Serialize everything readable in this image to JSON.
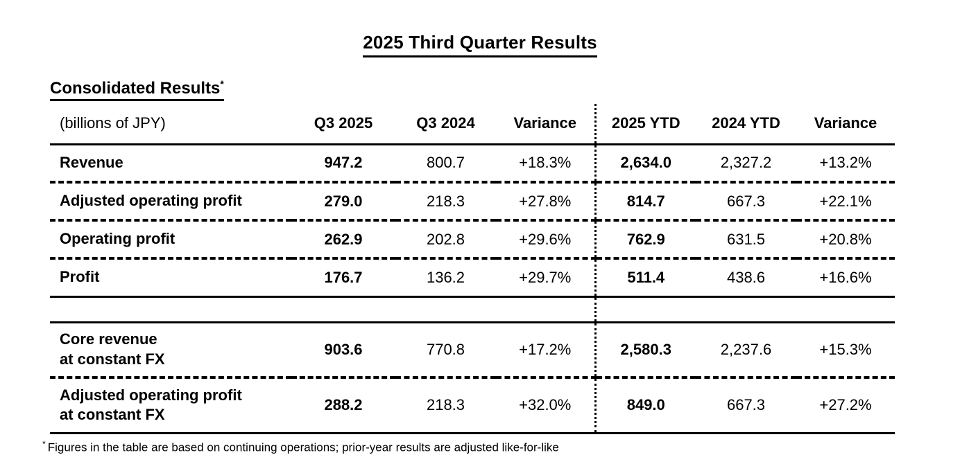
{
  "document": {
    "title": "2025 Third Quarter Results",
    "section_heading": "Consolidated Results",
    "section_note_marker": "*",
    "footnote_marker": "*",
    "footnote": "Figures in the table are based on continuing operations; prior-year results are adjusted like-for-like"
  },
  "colors": {
    "text": "#000000",
    "background": "#ffffff"
  },
  "table": {
    "unit_header": "(billions of JPY)",
    "headers": [
      "Q3 2025",
      "Q3 2024",
      "Variance",
      "2025 YTD",
      "2024 YTD",
      "Variance"
    ],
    "rows": [
      {
        "label": "Revenue",
        "values": [
          "947.2",
          "800.7",
          "+18.3%",
          "2,634.0",
          "2,327.2",
          "+13.2%"
        ]
      },
      {
        "label": "Adjusted operating profit",
        "values": [
          "279.0",
          "218.3",
          "+27.8%",
          "814.7",
          "667.3",
          "+22.1%"
        ]
      },
      {
        "label": "Operating profit",
        "values": [
          "262.9",
          "202.8",
          "+29.6%",
          "762.9",
          "631.5",
          "+20.8%"
        ]
      },
      {
        "label": "Profit",
        "values": [
          "176.7",
          "136.2",
          "+29.7%",
          "511.4",
          "438.6",
          "+16.6%"
        ]
      },
      {
        "label_line1": "Core revenue",
        "label_line2": "at constant FX",
        "values": [
          "903.6",
          "770.8",
          "+17.2%",
          "2,580.3",
          "2,237.6",
          "+15.3%"
        ]
      },
      {
        "label_line1": "Adjusted operating profit",
        "label_line2": "at constant FX",
        "values": [
          "288.2",
          "218.3",
          "+32.0%",
          "849.0",
          "667.3",
          "+27.2%"
        ]
      }
    ]
  }
}
